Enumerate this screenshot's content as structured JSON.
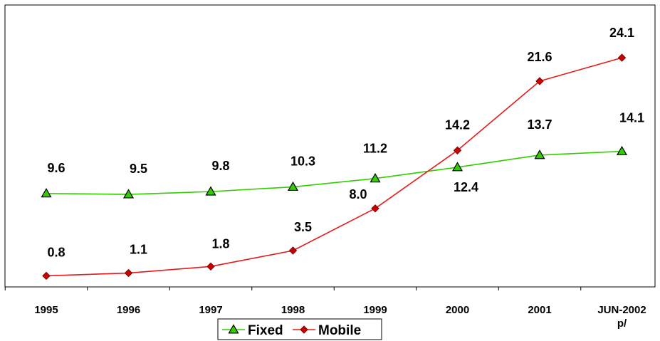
{
  "chart_data": {
    "type": "line",
    "title": "",
    "xlabel": "",
    "ylabel": "",
    "categories": [
      "1995",
      "1996",
      "1997",
      "1998",
      "1999",
      "2000",
      "2001",
      "JUN-2002 p/"
    ],
    "category_lines": [
      [
        "1995"
      ],
      [
        "1996"
      ],
      [
        "1997"
      ],
      [
        "1998"
      ],
      [
        "1999"
      ],
      [
        "2000"
      ],
      [
        "2001"
      ],
      [
        "JUN-2002",
        "p/"
      ]
    ],
    "ylim": [
      0,
      26
    ],
    "grid": false,
    "legend_position": "bottom",
    "series": [
      {
        "name": "Fixed",
        "values": [
          9.6,
          9.5,
          9.8,
          10.3,
          11.2,
          12.4,
          13.7,
          14.1
        ],
        "labels": [
          "9.6",
          "9.5",
          "9.8",
          "10.3",
          "11.2",
          "12.4",
          "13.7",
          "14.1"
        ],
        "color": "#33cc00",
        "marker_fill": "#33cc00",
        "marker": "triangle"
      },
      {
        "name": "Mobile",
        "values": [
          0.8,
          1.1,
          1.8,
          3.5,
          8.0,
          14.2,
          21.6,
          24.1
        ],
        "labels": [
          "0.8",
          "1.1",
          "1.8",
          "3.5",
          "8.0",
          "14.2",
          "21.6",
          "24.1"
        ],
        "color": "#e41a1c",
        "marker_fill": "#cc0000",
        "marker": "diamond"
      }
    ]
  }
}
